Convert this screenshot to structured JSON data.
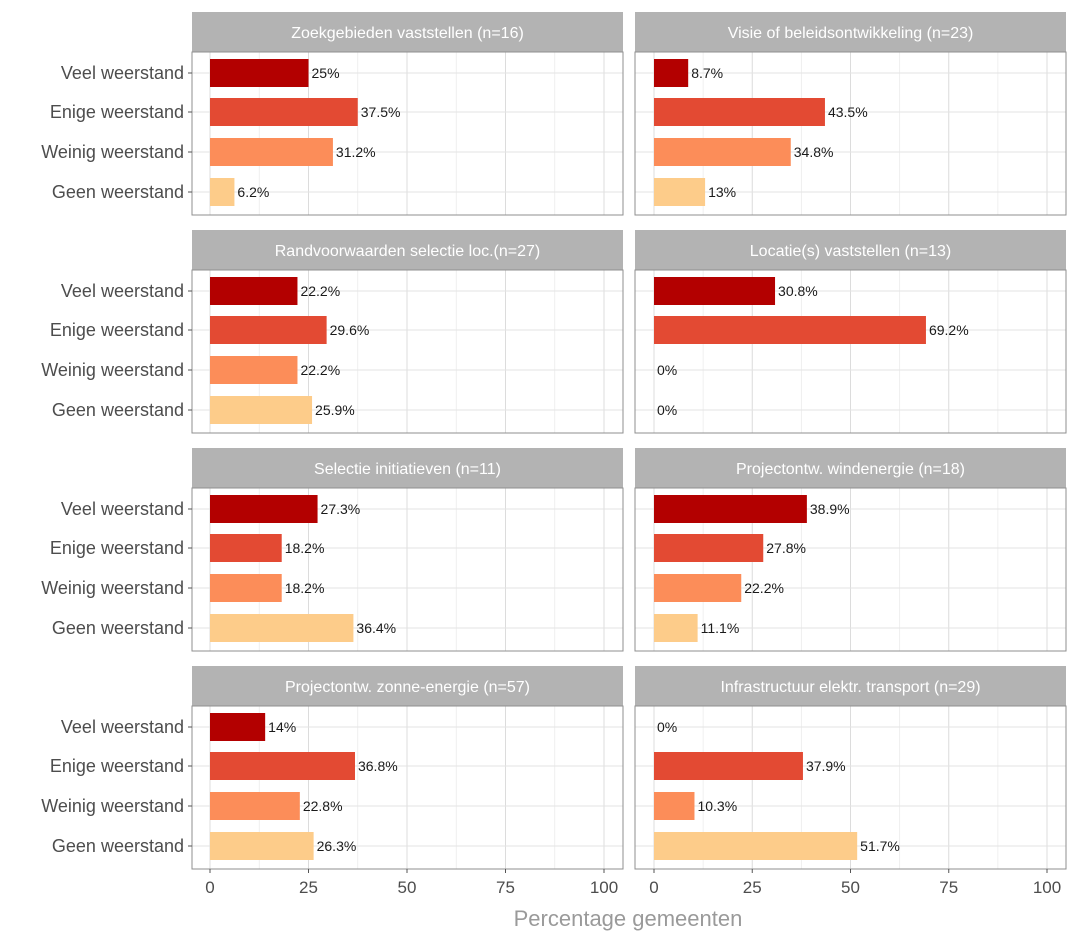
{
  "chart_data": {
    "type": "bar",
    "orientation": "horizontal",
    "layout": "facet-grid 4 rows x 2 columns",
    "xlabel": "Percentage gemeenten",
    "xlim": [
      0,
      100
    ],
    "xticks": [
      0,
      25,
      50,
      75,
      100
    ],
    "grid": true,
    "categories": [
      "Veel weerstand",
      "Enige weerstand",
      "Weinig weerstand",
      "Geen weerstand"
    ],
    "colors": {
      "Veel weerstand": "#b30000",
      "Enige weerstand": "#e34a33",
      "Weinig weerstand": "#fc8d59",
      "Geen weerstand": "#fdcc8a"
    },
    "strip_color": "#b3b3b3",
    "panels": [
      {
        "title": "Zoekgebieden vaststellen (n=16)",
        "values": [
          25,
          37.5,
          31.2,
          6.2
        ],
        "labels": [
          "25%",
          "37.5%",
          "31.2%",
          "6.2%"
        ]
      },
      {
        "title": "Visie of beleidsontwikkeling (n=23)",
        "values": [
          8.7,
          43.5,
          34.8,
          13
        ],
        "labels": [
          "8.7%",
          "43.5%",
          "34.8%",
          "13%"
        ]
      },
      {
        "title": "Randvoorwaarden selectie loc.(n=27)",
        "values": [
          22.2,
          29.6,
          22.2,
          25.9
        ],
        "labels": [
          "22.2%",
          "29.6%",
          "22.2%",
          "25.9%"
        ]
      },
      {
        "title": "Locatie(s) vaststellen (n=13)",
        "values": [
          30.8,
          69.2,
          0,
          0
        ],
        "labels": [
          "30.8%",
          "69.2%",
          "0%",
          "0%"
        ]
      },
      {
        "title": "Selectie initiatieven (n=11)",
        "values": [
          27.3,
          18.2,
          18.2,
          36.4
        ],
        "labels": [
          "27.3%",
          "18.2%",
          "18.2%",
          "36.4%"
        ]
      },
      {
        "title": "Projectontw. windenergie (n=18)",
        "values": [
          38.9,
          27.8,
          22.2,
          11.1
        ],
        "labels": [
          "38.9%",
          "27.8%",
          "22.2%",
          "11.1%"
        ]
      },
      {
        "title": "Projectontw. zonne-energie (n=57)",
        "values": [
          14,
          36.8,
          22.8,
          26.3
        ],
        "labels": [
          "14%",
          "36.8%",
          "22.8%",
          "26.3%"
        ]
      },
      {
        "title": "Infrastructuur elektr. transport (n=29)",
        "values": [
          0,
          37.9,
          10.3,
          51.7
        ],
        "labels": [
          "0%",
          "37.9%",
          "10.3%",
          "51.7%"
        ]
      }
    ]
  }
}
